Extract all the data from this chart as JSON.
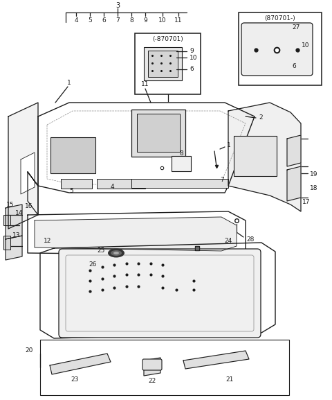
{
  "bg_color": "#ffffff",
  "line_color": "#1a1a1a",
  "figsize": [
    4.8,
    5.77
  ],
  "dpi": 100
}
